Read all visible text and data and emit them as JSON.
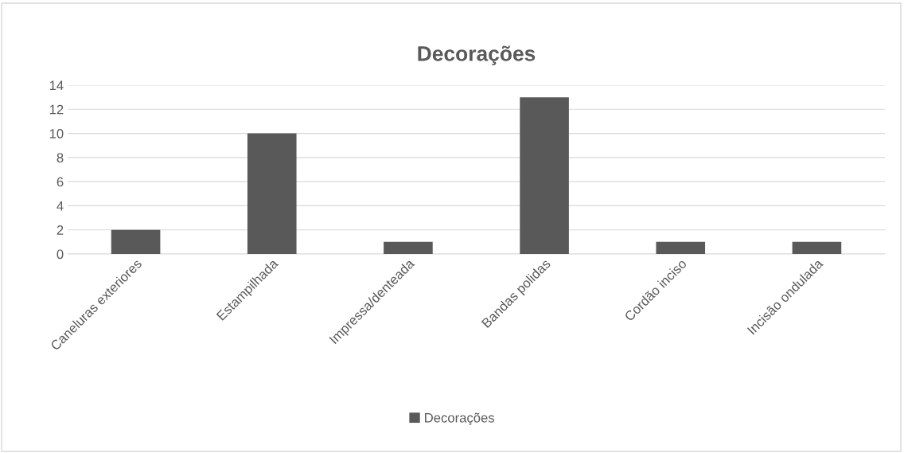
{
  "chart_data": {
    "type": "bar",
    "title": "Decorações",
    "categories": [
      "Caneluras exteriores",
      "Estampilhada",
      "Impressa/denteada",
      "Bandas polidas",
      "Cordão inciso",
      "Incisão ondulada"
    ],
    "series": [
      {
        "name": "Decorações",
        "color": "#595959",
        "values": [
          2,
          10,
          1,
          13,
          1,
          1
        ]
      }
    ],
    "ylim": [
      0,
      14
    ],
    "yticks": [
      0,
      2,
      4,
      6,
      8,
      10,
      12,
      14
    ],
    "grid": "y",
    "legend": "bottom"
  }
}
